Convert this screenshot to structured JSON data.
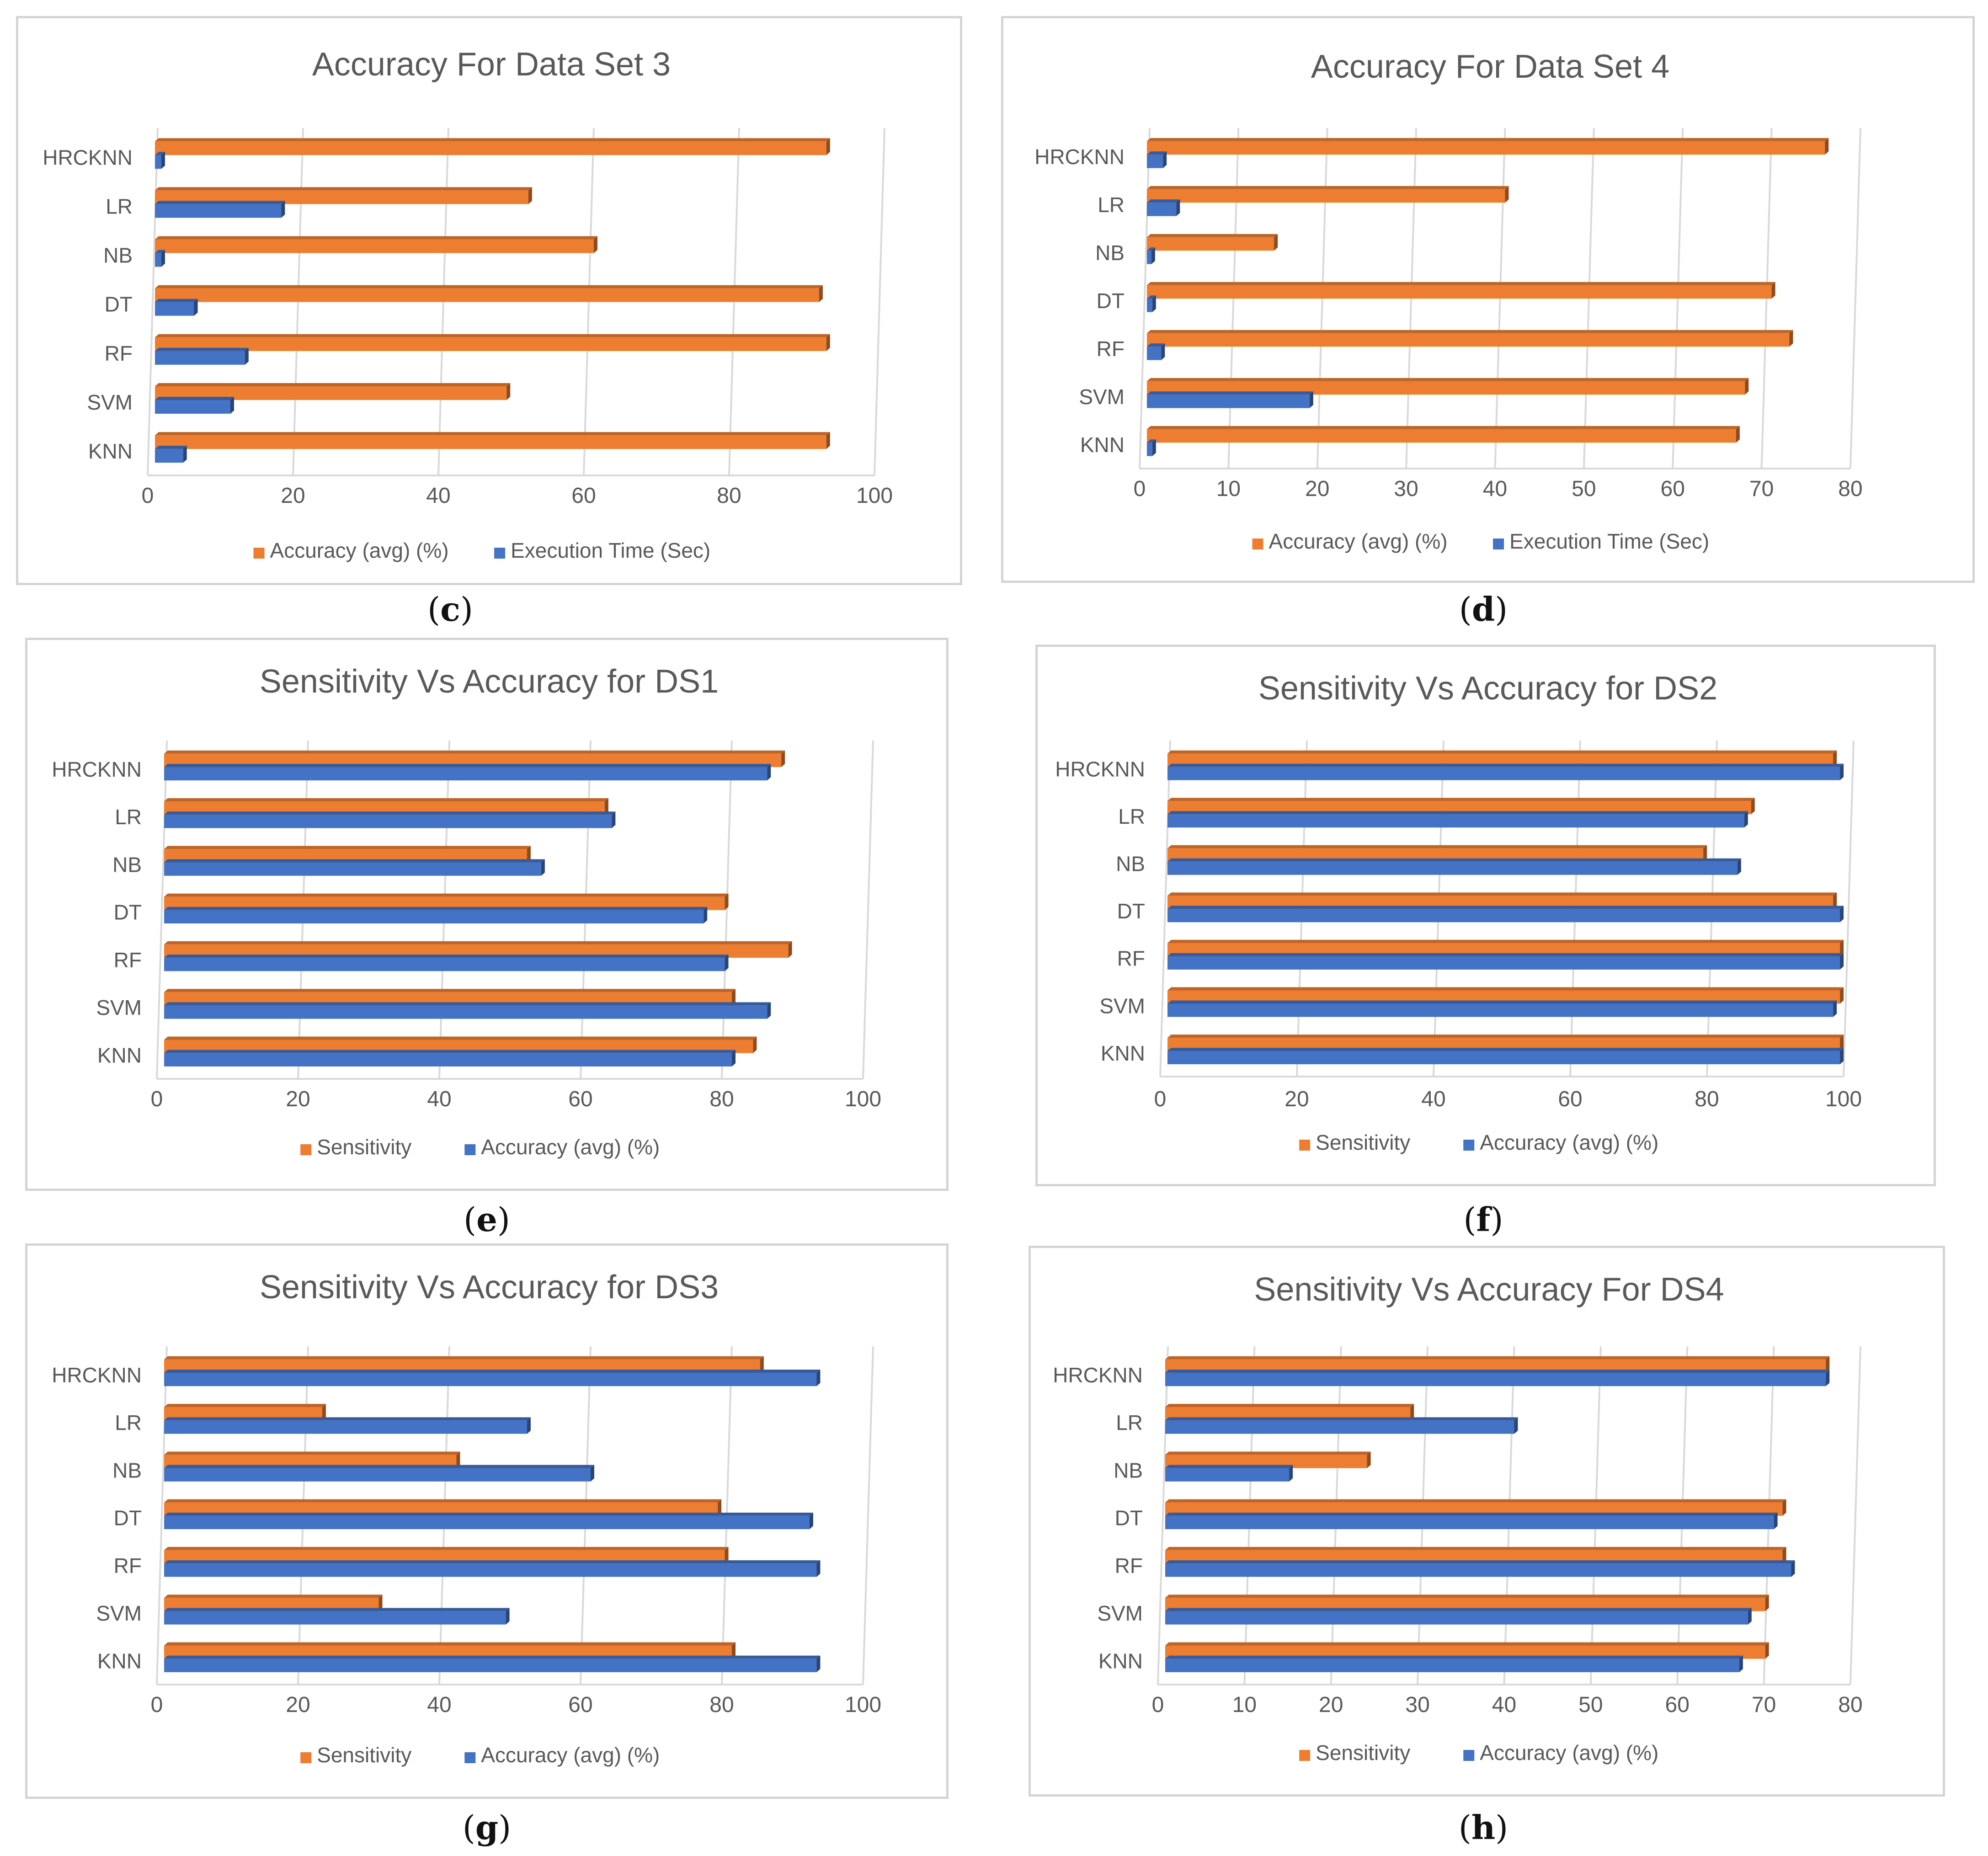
{
  "colors": {
    "orange": "#ED7D31",
    "blue": "#4472C4",
    "grid": "#d9d9d9",
    "text": "#595959"
  },
  "chart_data": [
    {
      "id": "c",
      "type": "bar",
      "orientation": "horizontal",
      "title": "Accuracy For Data Set 3",
      "caption": "c",
      "categories": [
        "HRCKNN",
        "LR",
        "NB",
        "DT",
        "RF",
        "SVM",
        "KNN"
      ],
      "xlim": [
        0,
        100
      ],
      "xticks": [
        0,
        20,
        40,
        60,
        80,
        100
      ],
      "grid": true,
      "legend": "bottom",
      "series": [
        {
          "name": "Accuracy (avg) (%)",
          "color": "#ED7D31",
          "values": [
            92,
            51,
            60,
            91,
            92,
            48,
            92
          ]
        },
        {
          "name": "Execution Time (Sec)",
          "color": "#4472C4",
          "values": [
            0.5,
            17,
            0.5,
            5,
            12,
            10,
            3.5
          ]
        }
      ]
    },
    {
      "id": "d",
      "type": "bar",
      "orientation": "horizontal",
      "title": "Accuracy For Data Set 4",
      "caption": "d",
      "categories": [
        "HRCKNN",
        "LR",
        "NB",
        "DT",
        "RF",
        "SVM",
        "KNN"
      ],
      "xlim": [
        0,
        80
      ],
      "xticks": [
        0,
        10,
        20,
        30,
        40,
        50,
        60,
        70,
        80
      ],
      "grid": true,
      "legend": "bottom",
      "series": [
        {
          "name": "Accuracy (avg) (%)",
          "color": "#ED7D31",
          "values": [
            76,
            40,
            14,
            70,
            72,
            67,
            66
          ]
        },
        {
          "name": "Execution Time (Sec)",
          "color": "#4472C4",
          "values": [
            1.5,
            3,
            0.2,
            0.3,
            1.3,
            18,
            0.3
          ]
        }
      ]
    },
    {
      "id": "e",
      "type": "bar",
      "orientation": "horizontal",
      "title": "Sensitivity Vs Accuracy for DS1",
      "caption": "e",
      "categories": [
        "HRCKNN",
        "LR",
        "NB",
        "DT",
        "RF",
        "SVM",
        "KNN"
      ],
      "xlim": [
        0,
        100
      ],
      "xticks": [
        0,
        20,
        40,
        60,
        80,
        100
      ],
      "grid": true,
      "legend": "bottom",
      "series": [
        {
          "name": "Sensitivity",
          "color": "#ED7D31",
          "values": [
            87,
            62,
            51,
            79,
            88,
            80,
            83
          ]
        },
        {
          "name": "Accuracy (avg) (%)",
          "color": "#4472C4",
          "values": [
            85,
            63,
            53,
            76,
            79,
            85,
            80
          ]
        }
      ]
    },
    {
      "id": "f",
      "type": "bar",
      "orientation": "horizontal",
      "title": "Sensitivity Vs Accuracy for DS2",
      "caption": "f",
      "categories": [
        "HRCKNN",
        "LR",
        "NB",
        "DT",
        "RF",
        "SVM",
        "KNN"
      ],
      "xlim": [
        0,
        100
      ],
      "xticks": [
        0,
        20,
        40,
        60,
        80,
        100
      ],
      "grid": true,
      "legend": "bottom",
      "series": [
        {
          "name": "Sensitivity",
          "color": "#ED7D31",
          "values": [
            97,
            85,
            78,
            97,
            98,
            98,
            98
          ]
        },
        {
          "name": "Accuracy (avg) (%)",
          "color": "#4472C4",
          "values": [
            98,
            84,
            83,
            98,
            98,
            97,
            98
          ]
        }
      ]
    },
    {
      "id": "g",
      "type": "bar",
      "orientation": "horizontal",
      "title": "Sensitivity Vs Accuracy for DS3",
      "caption": "g",
      "categories": [
        "HRCKNN",
        "LR",
        "NB",
        "DT",
        "RF",
        "SVM",
        "KNN"
      ],
      "xlim": [
        0,
        100
      ],
      "xticks": [
        0,
        20,
        40,
        60,
        80,
        100
      ],
      "grid": true,
      "legend": "bottom",
      "series": [
        {
          "name": "Sensitivity",
          "color": "#ED7D31",
          "values": [
            84,
            22,
            41,
            78,
            79,
            30,
            80
          ]
        },
        {
          "name": "Accuracy (avg) (%)",
          "color": "#4472C4",
          "values": [
            92,
            51,
            60,
            91,
            92,
            48,
            92
          ]
        }
      ]
    },
    {
      "id": "h",
      "type": "bar",
      "orientation": "horizontal",
      "title": "Sensitivity Vs Accuracy For DS4",
      "caption": "h",
      "categories": [
        "HRCKNN",
        "LR",
        "NB",
        "DT",
        "RF",
        "SVM",
        "KNN"
      ],
      "xlim": [
        0,
        80
      ],
      "xticks": [
        0,
        10,
        20,
        30,
        40,
        50,
        60,
        70,
        80
      ],
      "grid": true,
      "legend": "bottom",
      "series": [
        {
          "name": "Sensitivity",
          "color": "#ED7D31",
          "values": [
            76,
            28,
            23,
            71,
            71,
            69,
            69
          ]
        },
        {
          "name": "Accuracy (avg) (%)",
          "color": "#4472C4",
          "values": [
            76,
            40,
            14,
            70,
            72,
            67,
            66
          ]
        }
      ]
    }
  ]
}
